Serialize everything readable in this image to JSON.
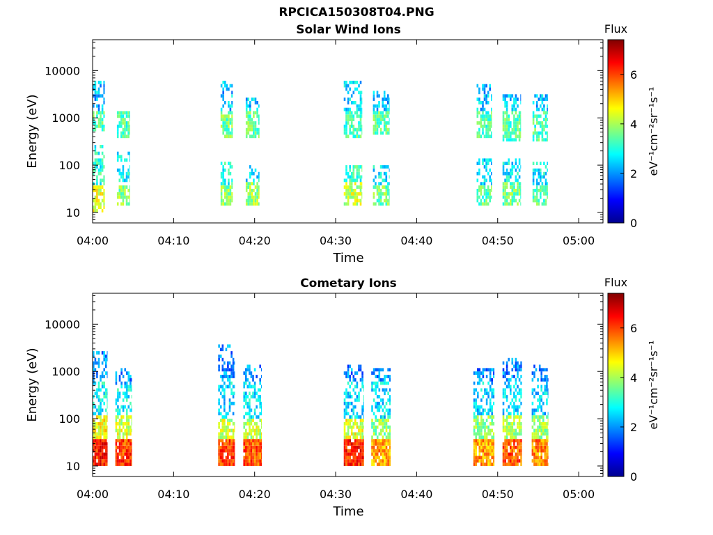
{
  "figure": {
    "title": "RPCICA150308T04.PNG"
  },
  "chart_data": [
    {
      "type": "heatmap",
      "title": "Solar Wind Ions",
      "xlabel": "Time",
      "ylabel": "Energy (eV)",
      "x_range": [
        "04:00",
        "05:03"
      ],
      "x_ticks": [
        "04:00",
        "04:10",
        "04:20",
        "04:30",
        "04:40",
        "04:50",
        "05:00"
      ],
      "y_scale": "log",
      "y_range": [
        6,
        45000
      ],
      "y_ticks": [
        "10",
        "100",
        "1000",
        "10000"
      ],
      "colorbar": {
        "label": "Flux",
        "unit": "eV⁻¹cm⁻²sr⁻¹s⁻¹",
        "range": [
          0,
          7.4
        ],
        "ticks": [
          "0",
          "2",
          "4",
          "6"
        ],
        "colormap": "jet"
      },
      "bursts": [
        {
          "start_min": 0.0,
          "end_min": 1.5,
          "components": [
            {
              "energy_min": 7,
              "energy_max": 40,
              "flux": 4.4
            },
            {
              "energy_min": 40,
              "energy_max": 250,
              "flux": 3.0
            },
            {
              "energy_min": 450,
              "energy_max": 1300,
              "flux": 3.4
            },
            {
              "energy_min": 1300,
              "energy_max": 6000,
              "flux": 2.3
            }
          ]
        },
        {
          "start_min": 3.0,
          "end_min": 4.6,
          "components": [
            {
              "energy_min": 13,
              "energy_max": 40,
              "flux": 3.8
            },
            {
              "energy_min": 40,
              "energy_max": 180,
              "flux": 2.8
            },
            {
              "energy_min": 380,
              "energy_max": 1300,
              "flux": 3.3
            }
          ]
        },
        {
          "start_min": 15.8,
          "end_min": 17.3,
          "components": [
            {
              "energy_min": 13,
              "energy_max": 40,
              "flux": 3.8
            },
            {
              "energy_min": 40,
              "energy_max": 120,
              "flux": 3.0
            },
            {
              "energy_min": 400,
              "energy_max": 1300,
              "flux": 3.6
            },
            {
              "energy_min": 1300,
              "energy_max": 6000,
              "flux": 2.3
            }
          ]
        },
        {
          "start_min": 18.9,
          "end_min": 20.6,
          "components": [
            {
              "energy_min": 13,
              "energy_max": 45,
              "flux": 3.9
            },
            {
              "energy_min": 45,
              "energy_max": 100,
              "flux": 2.7
            },
            {
              "energy_min": 400,
              "energy_max": 1300,
              "flux": 3.5
            },
            {
              "energy_min": 1300,
              "energy_max": 2500,
              "flux": 2.4
            }
          ]
        },
        {
          "start_min": 31.0,
          "end_min": 33.2,
          "components": [
            {
              "energy_min": 13,
              "energy_max": 45,
              "flux": 4.2
            },
            {
              "energy_min": 45,
              "energy_max": 100,
              "flux": 3.2
            },
            {
              "energy_min": 350,
              "energy_max": 1300,
              "flux": 3.3
            },
            {
              "energy_min": 1300,
              "energy_max": 6000,
              "flux": 2.5
            }
          ]
        },
        {
          "start_min": 34.6,
          "end_min": 36.6,
          "components": [
            {
              "energy_min": 13,
              "energy_max": 35,
              "flux": 3.6
            },
            {
              "energy_min": 35,
              "energy_max": 100,
              "flux": 2.7
            },
            {
              "energy_min": 450,
              "energy_max": 1300,
              "flux": 3.5
            },
            {
              "energy_min": 1300,
              "energy_max": 4000,
              "flux": 2.3
            }
          ]
        },
        {
          "start_min": 47.4,
          "end_min": 49.3,
          "components": [
            {
              "energy_min": 13,
              "energy_max": 35,
              "flux": 3.4
            },
            {
              "energy_min": 35,
              "energy_max": 150,
              "flux": 2.6
            },
            {
              "energy_min": 400,
              "energy_max": 1300,
              "flux": 3.3
            },
            {
              "energy_min": 1300,
              "energy_max": 5000,
              "flux": 2.3
            }
          ]
        },
        {
          "start_min": 50.6,
          "end_min": 52.8,
          "components": [
            {
              "energy_min": 13,
              "energy_max": 45,
              "flux": 3.6
            },
            {
              "energy_min": 45,
              "energy_max": 150,
              "flux": 2.7
            },
            {
              "energy_min": 300,
              "energy_max": 1300,
              "flux": 3.4
            },
            {
              "energy_min": 1300,
              "energy_max": 3000,
              "flux": 2.4
            }
          ]
        },
        {
          "start_min": 54.3,
          "end_min": 56.2,
          "components": [
            {
              "energy_min": 13,
              "energy_max": 35,
              "flux": 3.4
            },
            {
              "energy_min": 35,
              "energy_max": 120,
              "flux": 2.7
            },
            {
              "energy_min": 300,
              "energy_max": 1300,
              "flux": 3.3
            },
            {
              "energy_min": 1300,
              "energy_max": 3000,
              "flux": 2.3
            }
          ]
        }
      ]
    },
    {
      "type": "heatmap",
      "title": "Cometary Ions",
      "xlabel": "Time",
      "ylabel": "Energy (eV)",
      "x_range": [
        "04:00",
        "05:03"
      ],
      "x_ticks": [
        "04:00",
        "04:10",
        "04:20",
        "04:30",
        "04:40",
        "04:50",
        "05:00"
      ],
      "y_scale": "log",
      "y_range": [
        6,
        45000
      ],
      "y_ticks": [
        "10",
        "100",
        "1000",
        "10000"
      ],
      "colorbar": {
        "label": "Flux",
        "unit": "eV⁻¹cm⁻²sr⁻¹s⁻¹",
        "range": [
          0,
          7.4
        ],
        "ticks": [
          "0",
          "2",
          "4",
          "6"
        ],
        "colormap": "jet"
      },
      "bursts": [
        {
          "start_min": 0.0,
          "end_min": 1.8,
          "components": [
            {
              "energy_min": 7,
              "energy_max": 40,
              "flux": 6.3
            },
            {
              "energy_min": 40,
              "energy_max": 120,
              "flux": 4.6
            },
            {
              "energy_min": 120,
              "energy_max": 600,
              "flux": 2.8
            },
            {
              "energy_min": 600,
              "energy_max": 2500,
              "flux": 2.0
            }
          ]
        },
        {
          "start_min": 2.8,
          "end_min": 4.8,
          "components": [
            {
              "energy_min": 8,
              "energy_max": 40,
              "flux": 6.0
            },
            {
              "energy_min": 40,
              "energy_max": 120,
              "flux": 4.3
            },
            {
              "energy_min": 120,
              "energy_max": 500,
              "flux": 2.8
            },
            {
              "energy_min": 500,
              "energy_max": 1200,
              "flux": 2.0
            }
          ]
        },
        {
          "start_min": 15.5,
          "end_min": 17.5,
          "components": [
            {
              "energy_min": 8,
              "energy_max": 40,
              "flux": 6.0
            },
            {
              "energy_min": 40,
              "energy_max": 100,
              "flux": 4.2
            },
            {
              "energy_min": 100,
              "energy_max": 700,
              "flux": 2.6
            },
            {
              "energy_min": 700,
              "energy_max": 4000,
              "flux": 1.9
            }
          ]
        },
        {
          "start_min": 18.6,
          "end_min": 20.8,
          "components": [
            {
              "energy_min": 8,
              "energy_max": 40,
              "flux": 5.9
            },
            {
              "energy_min": 40,
              "energy_max": 100,
              "flux": 4.2
            },
            {
              "energy_min": 100,
              "energy_max": 600,
              "flux": 2.6
            },
            {
              "energy_min": 600,
              "energy_max": 1500,
              "flux": 2.0
            }
          ]
        },
        {
          "start_min": 31.0,
          "end_min": 33.5,
          "components": [
            {
              "energy_min": 9,
              "energy_max": 40,
              "flux": 6.2
            },
            {
              "energy_min": 40,
              "energy_max": 100,
              "flux": 4.4
            },
            {
              "energy_min": 100,
              "energy_max": 600,
              "flux": 2.6
            },
            {
              "energy_min": 600,
              "energy_max": 1500,
              "flux": 1.9
            }
          ]
        },
        {
          "start_min": 34.4,
          "end_min": 36.8,
          "components": [
            {
              "energy_min": 9,
              "energy_max": 40,
              "flux": 5.3
            },
            {
              "energy_min": 40,
              "energy_max": 100,
              "flux": 3.8
            },
            {
              "energy_min": 100,
              "energy_max": 600,
              "flux": 2.6
            },
            {
              "energy_min": 600,
              "energy_max": 1200,
              "flux": 2.1
            }
          ]
        },
        {
          "start_min": 47.0,
          "end_min": 49.6,
          "components": [
            {
              "energy_min": 9,
              "energy_max": 40,
              "flux": 5.3
            },
            {
              "energy_min": 40,
              "energy_max": 120,
              "flux": 3.8
            },
            {
              "energy_min": 120,
              "energy_max": 600,
              "flux": 2.5
            },
            {
              "energy_min": 600,
              "energy_max": 1200,
              "flux": 1.9
            }
          ]
        },
        {
          "start_min": 50.6,
          "end_min": 53.0,
          "components": [
            {
              "energy_min": 9,
              "energy_max": 40,
              "flux": 5.8
            },
            {
              "energy_min": 40,
              "energy_max": 120,
              "flux": 4.0
            },
            {
              "energy_min": 120,
              "energy_max": 600,
              "flux": 2.6
            },
            {
              "energy_min": 600,
              "energy_max": 1800,
              "flux": 1.9
            }
          ]
        },
        {
          "start_min": 54.2,
          "end_min": 56.2,
          "components": [
            {
              "energy_min": 9,
              "energy_max": 40,
              "flux": 5.5
            },
            {
              "energy_min": 40,
              "energy_max": 120,
              "flux": 3.9
            },
            {
              "energy_min": 120,
              "energy_max": 600,
              "flux": 2.5
            },
            {
              "energy_min": 600,
              "energy_max": 1500,
              "flux": 1.9
            }
          ]
        }
      ]
    }
  ]
}
